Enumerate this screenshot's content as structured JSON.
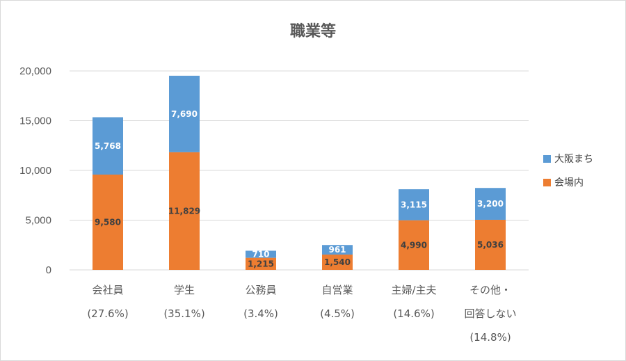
{
  "chart_data": {
    "type": "bar",
    "stacked": true,
    "title": "職業等",
    "categories": [
      [
        "会社員",
        "(27.6%)"
      ],
      [
        "学生",
        "(35.1%)"
      ],
      [
        "公務員",
        "(3.4%)"
      ],
      [
        "自営業",
        "(4.5%)"
      ],
      [
        "主婦/主夫",
        "(14.6%)"
      ],
      [
        "その他・",
        "回答しない",
        "(14.8%)"
      ]
    ],
    "series": [
      {
        "name": "会場内",
        "color": "#ed7d31",
        "values": [
          9580,
          11829,
          1215,
          1540,
          4990,
          5036
        ]
      },
      {
        "name": "大阪まち",
        "color": "#5b9bd5",
        "values": [
          5768,
          7690,
          710,
          961,
          3115,
          3200
        ]
      }
    ],
    "yticks": [
      "0",
      "5,000",
      "10,000",
      "15,000",
      "20,000"
    ],
    "ylim": [
      0,
      20000
    ],
    "grid": true,
    "legend": "right",
    "legend_order": [
      "大阪まち",
      "会場内"
    ]
  }
}
